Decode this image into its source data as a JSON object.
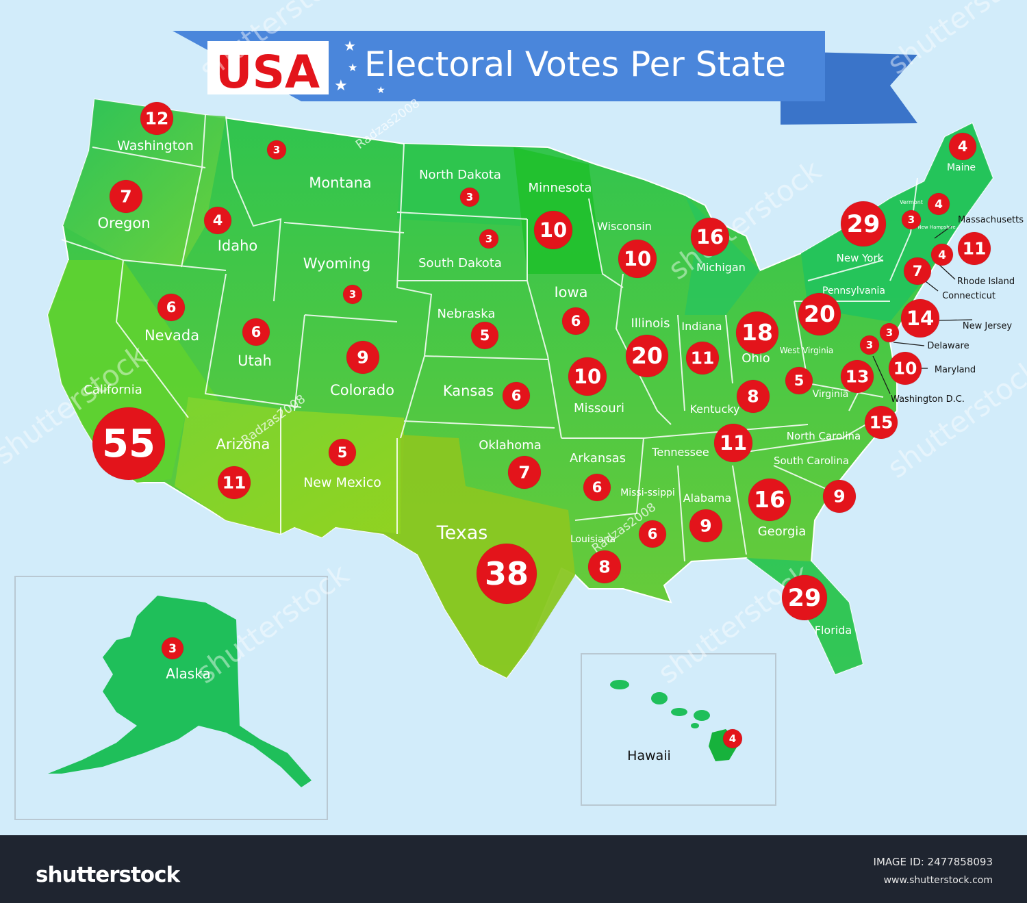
{
  "title": {
    "prefix": "USA",
    "main": "Electoral Votes Per State"
  },
  "colors": {
    "background": "#d2ecfa",
    "banner": "#4a86db",
    "badge": "#e3141b",
    "map_green_dark": "#1fbf5a",
    "map_green_light": "#8fd321"
  },
  "states": [
    {
      "name": "Washington",
      "votes": 12
    },
    {
      "name": "Oregon",
      "votes": 7
    },
    {
      "name": "California",
      "votes": 55
    },
    {
      "name": "Idaho",
      "votes": 4
    },
    {
      "name": "Nevada",
      "votes": 6
    },
    {
      "name": "Montana",
      "votes": 3
    },
    {
      "name": "Wyoming",
      "votes": 3
    },
    {
      "name": "Utah",
      "votes": 6
    },
    {
      "name": "Arizona",
      "votes": 11
    },
    {
      "name": "Colorado",
      "votes": 9
    },
    {
      "name": "New Mexico",
      "votes": 5
    },
    {
      "name": "North Dakota",
      "votes": 3
    },
    {
      "name": "South Dakota",
      "votes": 3
    },
    {
      "name": "Nebraska",
      "votes": 5
    },
    {
      "name": "Kansas",
      "votes": 6
    },
    {
      "name": "Oklahoma",
      "votes": 7
    },
    {
      "name": "Texas",
      "votes": 38
    },
    {
      "name": "Minnesota",
      "votes": 10
    },
    {
      "name": "Iowa",
      "votes": 6
    },
    {
      "name": "Missouri",
      "votes": 10
    },
    {
      "name": "Arkansas",
      "votes": 6
    },
    {
      "name": "Louisiana",
      "votes": 8
    },
    {
      "name": "Wisconsin",
      "votes": 10
    },
    {
      "name": "Illinois",
      "votes": 20
    },
    {
      "name": "Michigan",
      "votes": 16
    },
    {
      "name": "Indiana",
      "votes": 11
    },
    {
      "name": "Ohio",
      "votes": 18
    },
    {
      "name": "Kentucky",
      "votes": 8
    },
    {
      "name": "Tennessee",
      "votes": 11
    },
    {
      "name": "Missi-ssippi",
      "votes": 6
    },
    {
      "name": "Alabama",
      "votes": 9
    },
    {
      "name": "Georgia",
      "votes": 16
    },
    {
      "name": "Florida",
      "votes": 29
    },
    {
      "name": "South Carolina",
      "votes": 9
    },
    {
      "name": "North Carolina",
      "votes": 15
    },
    {
      "name": "Virginia",
      "votes": 13
    },
    {
      "name": "West Virginia",
      "votes": 5
    },
    {
      "name": "Pennsylvania",
      "votes": 20
    },
    {
      "name": "New York",
      "votes": 29
    },
    {
      "name": "Vermont",
      "votes": 3
    },
    {
      "name": "New Hampshire",
      "votes": 4
    },
    {
      "name": "Maine",
      "votes": 4
    },
    {
      "name": "Massachusetts",
      "votes": 11
    },
    {
      "name": "Rhode Island",
      "votes": 4
    },
    {
      "name": "Connecticut",
      "votes": 7
    },
    {
      "name": "New Jersey",
      "votes": 14
    },
    {
      "name": "Delaware",
      "votes": 3
    },
    {
      "name": "Maryland",
      "votes": 10
    },
    {
      "name": "Washington D.C.",
      "votes": 3
    },
    {
      "name": "Alaska",
      "votes": 3
    },
    {
      "name": "Hawaii",
      "votes": 4
    }
  ],
  "watermarks": {
    "brand": "shutterstock",
    "author": "Radzas2008"
  },
  "footer": {
    "logo": "shutterstock",
    "image_id": "IMAGE ID: 2477858093",
    "url": "www.shutterstock.com"
  }
}
